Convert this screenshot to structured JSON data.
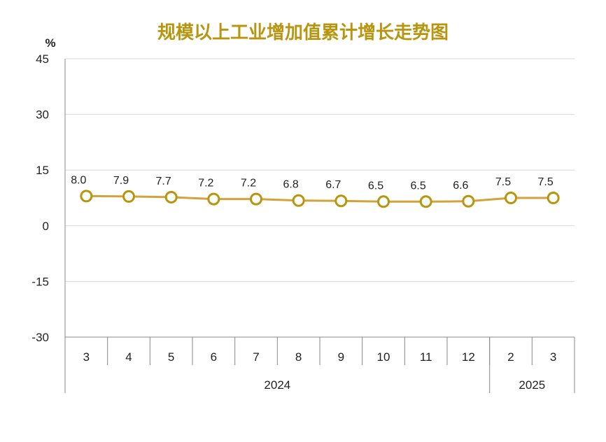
{
  "chart_data": {
    "type": "line",
    "title": "规模以上工业增加值累计增长走势图",
    "y_unit": "%",
    "ylim": [
      -30,
      45
    ],
    "yticks": [
      45,
      30,
      15,
      0,
      -15,
      -30
    ],
    "categories": [
      "3",
      "4",
      "5",
      "6",
      "7",
      "8",
      "9",
      "10",
      "11",
      "12",
      "2",
      "3"
    ],
    "year_groups": [
      {
        "label": "2024",
        "count": 10
      },
      {
        "label": "2025",
        "count": 2
      }
    ],
    "series": [
      {
        "values": [
          8.0,
          7.9,
          7.7,
          7.2,
          7.2,
          6.8,
          6.7,
          6.5,
          6.5,
          6.6,
          7.5,
          7.5
        ],
        "labels": [
          "8.0",
          "7.9",
          "7.7",
          "7.2",
          "7.2",
          "6.8",
          "6.7",
          "6.5",
          "6.5",
          "6.6",
          "7.5",
          "7.5"
        ]
      }
    ],
    "grid": true,
    "line_color": "#d4a23c",
    "marker_edge_color": "#b8950e",
    "title_color": "#b8950e"
  }
}
